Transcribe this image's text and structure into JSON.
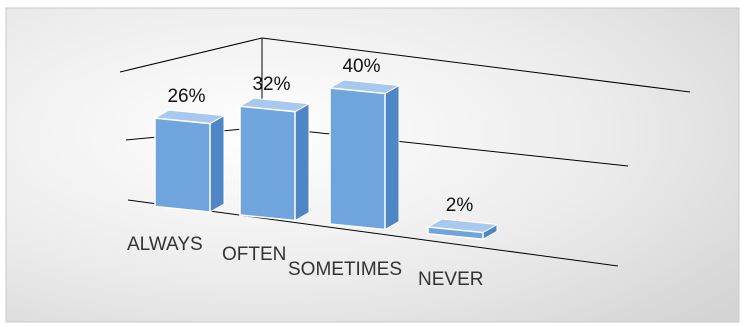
{
  "chart_data": {
    "type": "bar",
    "categories": [
      "ALWAYS",
      "OFTEN",
      "SOMETIMES",
      "NEVER"
    ],
    "series": [
      {
        "values": [
          26,
          32,
          40,
          2
        ]
      }
    ],
    "data_labels": [
      "26%",
      "32%",
      "40%",
      "2%"
    ],
    "ylim": [
      0,
      50
    ],
    "grid": true,
    "legend": "none",
    "style": "3d-clustered-column",
    "colors": {
      "bar_front": "#6fa4dc",
      "bar_side": "#4f86c6",
      "bar_top": "#a9c8ee",
      "bar_edge": "#ffffff",
      "gridline": "#000000",
      "background_light": "#ffffff",
      "background_dark": "#d4d4d4",
      "border": "#c8c8c8"
    }
  }
}
